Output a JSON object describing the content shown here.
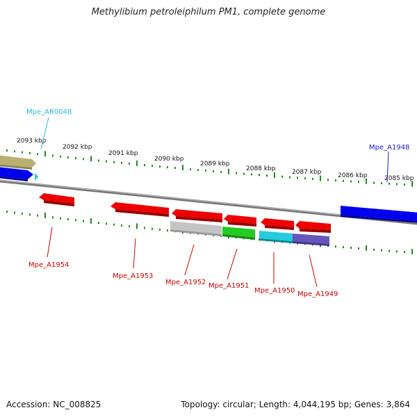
{
  "title": "Methylibium petroleiphilum PM1, complete genome",
  "footer": {
    "accession": "Accession: NC_008825",
    "summary": "Topology: circular; Length: 4,044,195 bp; Genes: 3,864"
  },
  "kbp_labels": [
    "2093 kbp",
    "2092 kbp",
    "2091 kbp",
    "2090 kbp",
    "2089 kbp",
    "2088 kbp",
    "2087 kbp",
    "2086 kbp",
    "2085 kbp"
  ],
  "gene_labels": [
    {
      "id": "Mpe_AR0048",
      "color": "#22bbdd"
    },
    {
      "id": "Mpe_A1948",
      "color": "#1a1acc"
    },
    {
      "id": "Mpe_A1954",
      "color": "#cc0000"
    },
    {
      "id": "Mpe_A1953",
      "color": "#cc0000"
    },
    {
      "id": "Mpe_A1952",
      "color": "#cc0000"
    },
    {
      "id": "Mpe_A1951",
      "color": "#cc0000"
    },
    {
      "id": "Mpe_A1950",
      "color": "#cc0000"
    },
    {
      "id": "Mpe_A1949",
      "color": "#cc0000"
    }
  ],
  "colors": {
    "backbone": "#888888",
    "tick": "#228822",
    "cds_forward": "#0000ee",
    "cds_reverse": "#ee0000",
    "rna": "#22ccee",
    "cog_khaki": "#b8b070",
    "cog_grey": "#bbbbbb",
    "cog_green": "#22cc22",
    "cog_cyan": "#22ccdd",
    "cog_purple": "#6655bb"
  }
}
